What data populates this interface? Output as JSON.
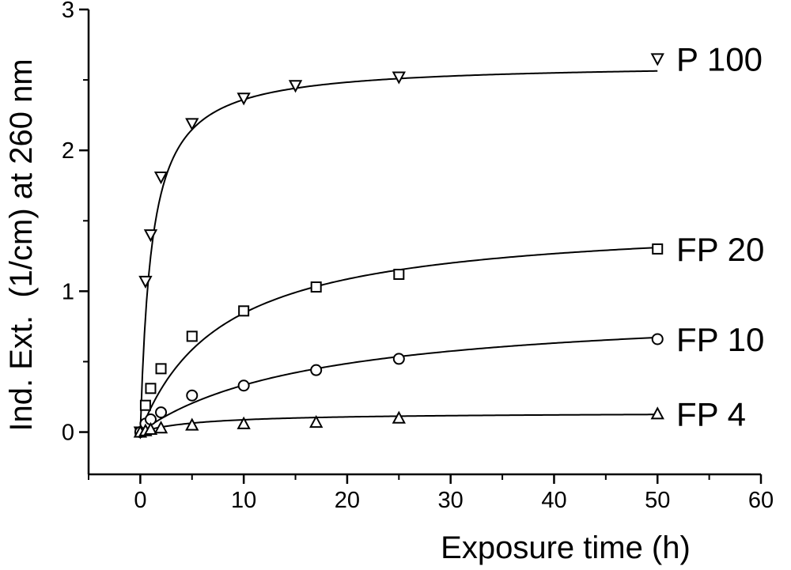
{
  "chart_data": {
    "type": "scatter",
    "title": "",
    "xlabel": "Exposure time (h)",
    "ylabel": "Ind. Ext.  (1/cm) at 260 nm",
    "xlim": [
      -5,
      60
    ],
    "ylim": [
      -0.3,
      3
    ],
    "xticks": [
      0,
      10,
      20,
      30,
      40,
      50,
      60
    ],
    "yticks": [
      0,
      1,
      2,
      3
    ],
    "grid": false,
    "legend": "none",
    "series": [
      {
        "name": "P 100",
        "marker": "triangle-down",
        "x": [
          0,
          0.5,
          1,
          2,
          5,
          10,
          15,
          25,
          50
        ],
        "y": [
          0,
          1.07,
          1.4,
          1.81,
          2.19,
          2.37,
          2.46,
          2.52,
          2.65
        ],
        "fit": {
          "a": 2.62,
          "k": 1.1
        }
      },
      {
        "name": "FP 20",
        "marker": "square",
        "x": [
          0,
          0.5,
          1,
          2,
          5,
          10,
          17,
          25,
          50
        ],
        "y": [
          0,
          0.19,
          0.31,
          0.45,
          0.68,
          0.86,
          1.03,
          1.12,
          1.3
        ],
        "fit": {
          "a": 1.52,
          "k": 8.0
        }
      },
      {
        "name": "FP 10",
        "marker": "circle",
        "x": [
          0,
          0.5,
          1,
          2,
          5,
          10,
          17,
          25,
          50
        ],
        "y": [
          0,
          0.06,
          0.09,
          0.14,
          0.26,
          0.33,
          0.44,
          0.52,
          0.66
        ],
        "fit": {
          "a": 0.9,
          "k": 17.0
        }
      },
      {
        "name": "FP 4",
        "marker": "triangle-up",
        "x": [
          0,
          0.5,
          1,
          2,
          5,
          10,
          17,
          25,
          50
        ],
        "y": [
          0,
          0.01,
          0.02,
          0.03,
          0.05,
          0.06,
          0.07,
          0.1,
          0.13
        ],
        "fit": {
          "a": 0.14,
          "k": 6.0
        }
      }
    ]
  }
}
